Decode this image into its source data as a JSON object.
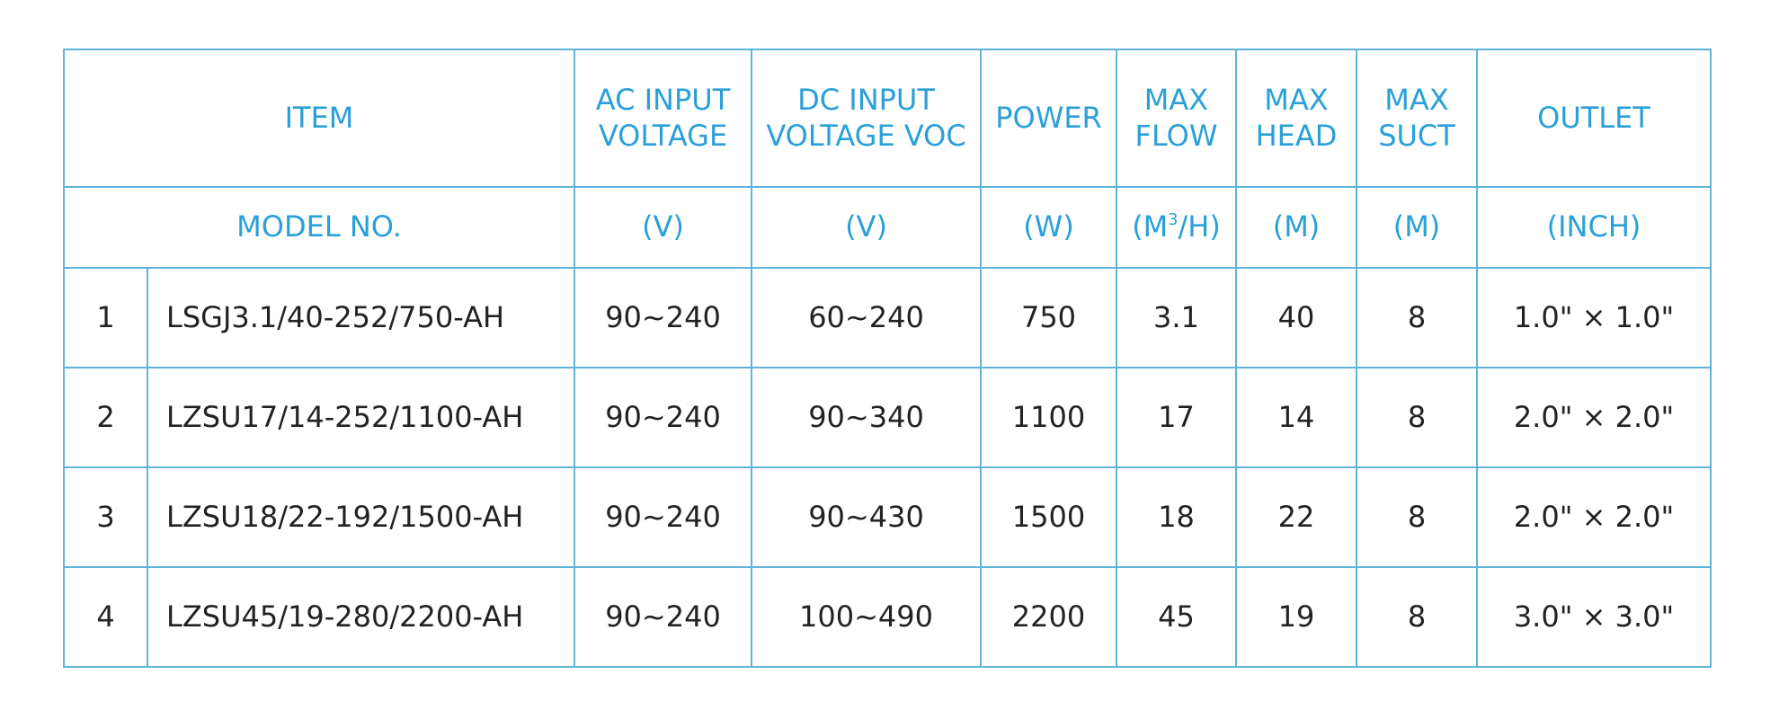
{
  "table": {
    "header": [
      [
        "ITEM"
      ],
      [
        "AC INPUT",
        "VOLTAGE"
      ],
      [
        "DC INPUT",
        "VOLTAGE VOC"
      ],
      [
        "POWER"
      ],
      [
        "MAX",
        "FLOW"
      ],
      [
        "MAX",
        "HEAD"
      ],
      [
        "MAX",
        "SUCT"
      ],
      [
        "OUTLET"
      ]
    ],
    "units": [
      "MODEL NO.",
      "(V)",
      "(V)",
      "(W)",
      {
        "text": "(M",
        "sup": "3",
        "tail": "/H)"
      },
      "(M)",
      "(M)",
      "(INCH)"
    ],
    "rows": [
      [
        "1",
        "LSGJ3.1/40-252/750-AH",
        "90~240",
        "60~240",
        "750",
        "3.1",
        "40",
        "8",
        "1.0\" × 1.0\""
      ],
      [
        "2",
        "LZSU17/14-252/1100-AH",
        "90~240",
        "90~340",
        "1100",
        "17",
        "14",
        "8",
        "2.0\" × 2.0\""
      ],
      [
        "3",
        "LZSU18/22-192/1500-AH",
        "90~240",
        "90~430",
        "1500",
        "18",
        "22",
        "8",
        "2.0\" × 2.0\""
      ],
      [
        "4",
        "LZSU45/19-280/2200-AH",
        "90~240",
        "100~490",
        "2200",
        "45",
        "19",
        "8",
        "3.0\" × 3.0\""
      ]
    ]
  }
}
